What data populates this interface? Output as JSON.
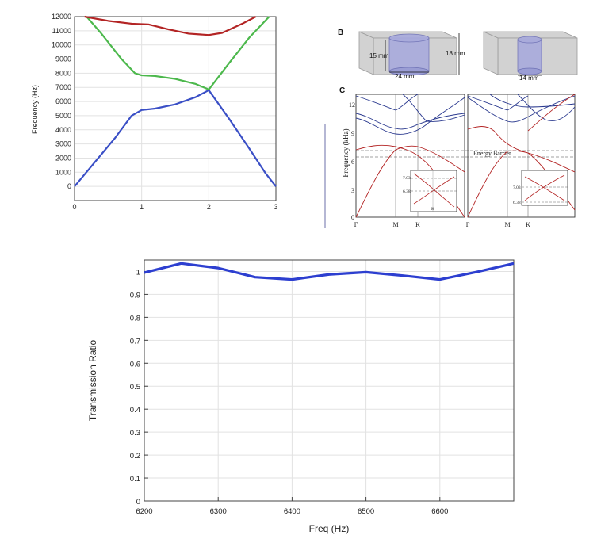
{
  "panel_b": {
    "label": "B",
    "dims": {
      "height_large": "15 mm",
      "height_box": "18 mm",
      "diam_large": "24 mm",
      "diam_small": "14 mm"
    }
  },
  "panel_c": {
    "label": "C",
    "annotation": "Energy Barrier",
    "inset_ticks": [
      "7.03",
      "6.38"
    ],
    "inset_x": "K"
  },
  "chart_data": [
    {
      "id": "band-structure-left",
      "type": "line",
      "xlabel": "",
      "ylabel": "Frequency (Hz)",
      "xlim": [
        0,
        3
      ],
      "ylim": [
        -1000,
        12000
      ],
      "xticks": [
        "0",
        "1",
        "2",
        "3"
      ],
      "yticks": [
        "0",
        "1000",
        "2000",
        "3000",
        "4000",
        "5000",
        "6000",
        "7000",
        "8000",
        "9000",
        "10000",
        "11000",
        "12000"
      ],
      "grid": true,
      "series": [
        {
          "color": "#3a4fc6",
          "x": [
            0,
            0.3,
            0.6,
            0.85,
            1.0,
            1.2,
            1.5,
            1.8,
            2.0,
            2.3,
            2.6,
            2.85,
            3.0
          ],
          "y": [
            0,
            1700,
            3400,
            5000,
            5400,
            5500,
            5800,
            6300,
            6800,
            4800,
            2700,
            900,
            0
          ]
        },
        {
          "color": "#4cb84c",
          "x": [
            0.18,
            0.4,
            0.7,
            0.9,
            1.0,
            1.2,
            1.5,
            1.8,
            2.0,
            2.3,
            2.6,
            2.9
          ],
          "y": [
            12000,
            10800,
            9000,
            8000,
            7850,
            7800,
            7600,
            7250,
            6850,
            8700,
            10500,
            12000
          ]
        },
        {
          "color": "#b32424",
          "x": [
            0.15,
            0.5,
            0.85,
            1.1,
            1.4,
            1.7,
            2.0,
            2.2,
            2.5,
            2.7
          ],
          "y": [
            12000,
            11700,
            11500,
            11450,
            11100,
            10800,
            10700,
            10850,
            11500,
            12000
          ]
        }
      ]
    },
    {
      "id": "band-structure-c-left",
      "type": "line",
      "xlabel": "",
      "ylabel": "Frequency (kHz)",
      "ylim": [
        0,
        13
      ],
      "yticks": [
        "0",
        "3",
        "6",
        "9",
        "12"
      ],
      "xticks": [
        "Γ",
        "M",
        "K"
      ],
      "energy_barrier": [
        6.38,
        7.03
      ]
    },
    {
      "id": "band-structure-c-right",
      "type": "line",
      "xlabel": "",
      "ylabel": "",
      "ylim": [
        0,
        13
      ],
      "xticks": [
        "Γ",
        "M",
        "K"
      ]
    },
    {
      "id": "transmission",
      "type": "line",
      "xlabel": "Freq (Hz)",
      "ylabel": "Transmission Ratio",
      "xlim": [
        6200,
        6700
      ],
      "ylim": [
        0,
        1.05
      ],
      "xticks": [
        "6200",
        "6300",
        "6400",
        "6500",
        "6600"
      ],
      "yticks": [
        "0",
        "0.1",
        "0.2",
        "0.3",
        "0.4",
        "0.5",
        "0.6",
        "0.7",
        "0.8",
        "0.9",
        "1"
      ],
      "grid": true,
      "series": [
        {
          "color": "#2d3fd0",
          "x": [
            6200,
            6250,
            6300,
            6350,
            6400,
            6450,
            6500,
            6550,
            6600,
            6650,
            6700
          ],
          "y": [
            0.995,
            1.035,
            1.015,
            0.975,
            0.965,
            0.987,
            0.997,
            0.982,
            0.965,
            0.998,
            1.035
          ]
        }
      ]
    }
  ]
}
